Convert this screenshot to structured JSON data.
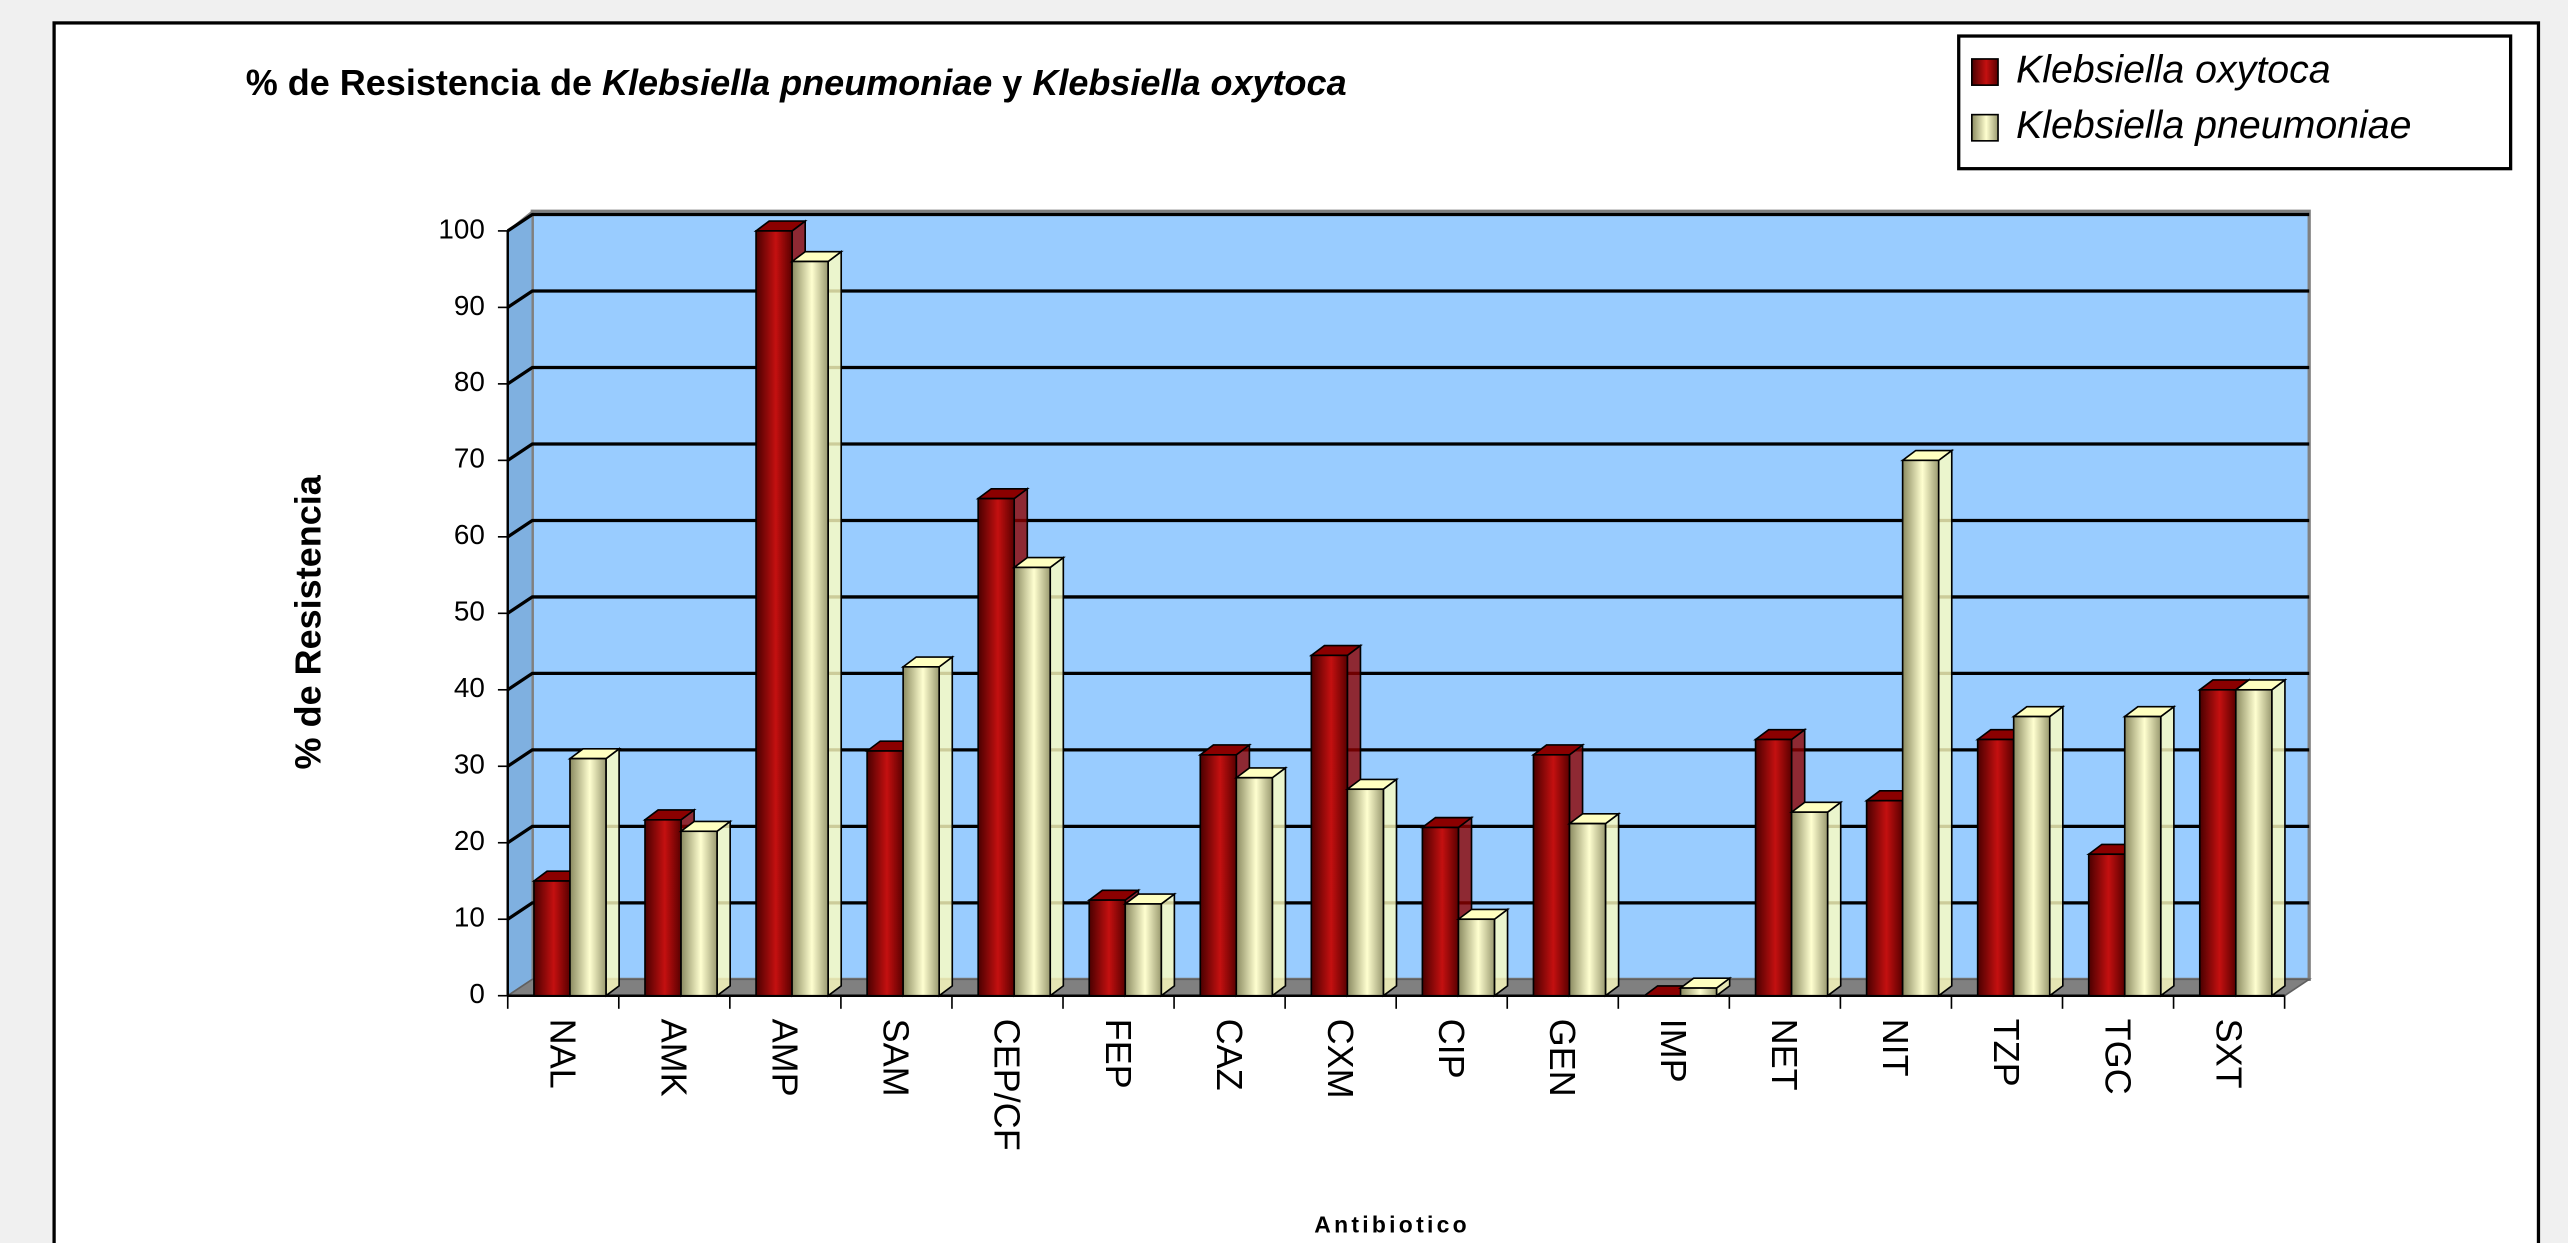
{
  "chart_data": {
    "type": "bar3d",
    "title": [
      "% de Resistencia de ",
      "Klebsiella pneumoniae",
      " y ",
      "Klebsiella oxytoca"
    ],
    "ylabel": "% de Resistencia",
    "xlabel": "Antibiotico",
    "categories": [
      "NAL",
      "AMK",
      "AMP",
      "SAM",
      "CEP/CF",
      "FEP",
      "CAZ",
      "CXM",
      "CIP",
      "GEN",
      "IMP",
      "NET",
      "NIT",
      "TZP",
      "TGC",
      "SXT"
    ],
    "series": [
      {
        "name": "Klebsiella oxytoca",
        "color": "#8b0000",
        "values": [
          15,
          23,
          100,
          32,
          65,
          12.5,
          31.5,
          44.5,
          22,
          31.5,
          0,
          33.5,
          25.5,
          33.5,
          18.5,
          40
        ]
      },
      {
        "name": "Klebsiella pneumoniae",
        "color": "#ffffc0",
        "values": [
          31,
          21.5,
          96,
          43,
          56,
          12,
          28.5,
          27,
          10,
          22.5,
          1,
          24,
          70,
          36.5,
          36.5,
          40
        ]
      }
    ],
    "ylim": [
      0,
      100
    ],
    "yticks": [
      0,
      10,
      20,
      30,
      40,
      50,
      60,
      70,
      80,
      90,
      100
    ],
    "grid": true,
    "legend": "top-right"
  }
}
